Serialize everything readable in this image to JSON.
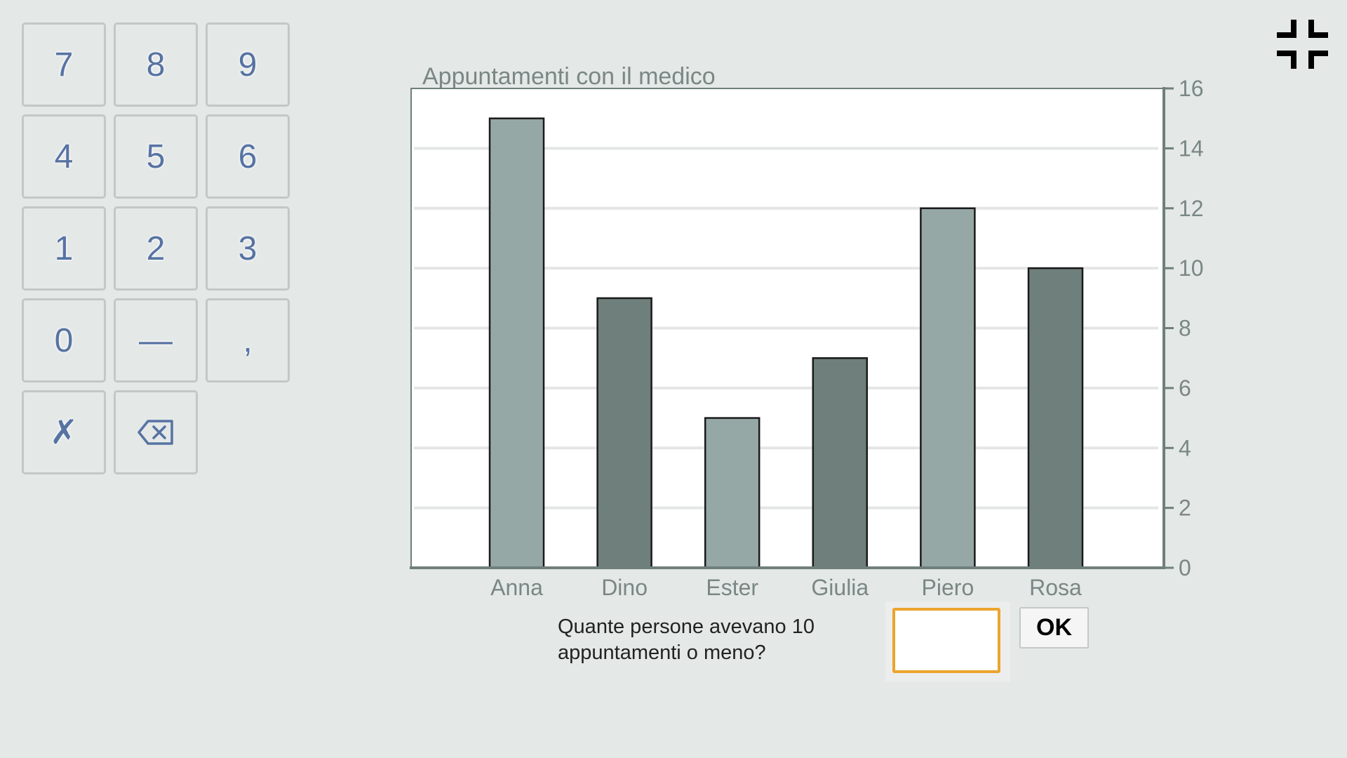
{
  "keypad": {
    "keys": [
      {
        "label": "7",
        "name": "key-7"
      },
      {
        "label": "8",
        "name": "key-8"
      },
      {
        "label": "9",
        "name": "key-9"
      },
      {
        "label": "4",
        "name": "key-4"
      },
      {
        "label": "5",
        "name": "key-5"
      },
      {
        "label": "6",
        "name": "key-6"
      },
      {
        "label": "1",
        "name": "key-1"
      },
      {
        "label": "2",
        "name": "key-2"
      },
      {
        "label": "3",
        "name": "key-3"
      },
      {
        "label": "0",
        "name": "key-0"
      },
      {
        "label": "—",
        "name": "key-minus"
      },
      {
        "label": ",",
        "name": "key-comma"
      },
      {
        "label": "✗",
        "name": "key-clear"
      },
      {
        "label": "",
        "name": "key-backspace",
        "icon": "backspace-icon"
      }
    ]
  },
  "header": {
    "collapse_icon": "collapse-fullscreen-icon"
  },
  "chart_data": {
    "type": "bar",
    "title": "Appuntamenti con il medico",
    "categories": [
      "Anna",
      "Dino",
      "Ester",
      "Giulia",
      "Piero",
      "Rosa"
    ],
    "values": [
      15,
      9,
      5,
      7,
      12,
      10
    ],
    "ylim": [
      0,
      16
    ],
    "yticks": [
      "0",
      "2",
      "4",
      "6",
      "8",
      "10",
      "12",
      "14",
      "16"
    ],
    "xlabel": "",
    "ylabel": "",
    "y_axis_side": "right",
    "grid": true,
    "colors": [
      "#96a8a5",
      "#6f7f7b",
      "#96a8a5",
      "#6f7f7b",
      "#96a8a5",
      "#6f7f7b"
    ],
    "axis_color": "#6f7f7b",
    "label_color": "#7a8784"
  },
  "question": {
    "text": "Quante persone avevano 10 appuntamenti o meno?",
    "answer_value": "",
    "answer_placeholder": "",
    "ok_label": "OK",
    "accent_color": "#eba52d"
  }
}
